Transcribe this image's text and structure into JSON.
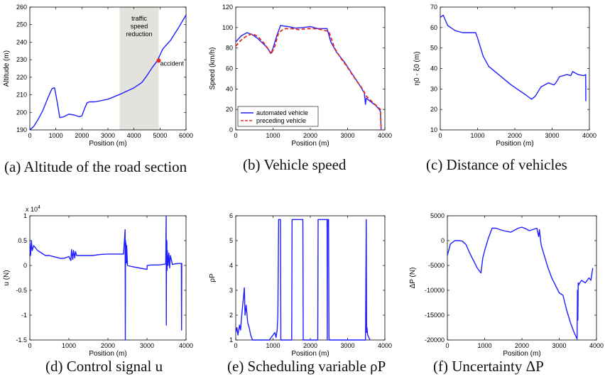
{
  "captions": {
    "a": "(a) Altitude of the road section",
    "b": "(b) Vehicle speed",
    "c": "(c) Distance of vehicles",
    "d": "(d) Control signal u",
    "e": "(e) Scheduling variable ρP",
    "f": "(f) Uncertainty ΔP"
  },
  "chart_data": [
    {
      "id": "a",
      "type": "line",
      "xlabel": "Position (m)",
      "ylabel": "Altitude (m)",
      "xlim": [
        0,
        6000
      ],
      "ylim": [
        190,
        260
      ],
      "xticks": [
        0,
        1000,
        2000,
        3000,
        4000,
        5000,
        6000
      ],
      "yticks": [
        190,
        200,
        210,
        220,
        230,
        240,
        250,
        260
      ],
      "shaded_region": {
        "x": [
          3450,
          4950
        ],
        "label": "traffic speed reduction",
        "color": "#e3e2dd"
      },
      "annotations": [
        {
          "text": "accident",
          "x": 4950,
          "y": 229.5,
          "marker_color": "#e8281f"
        }
      ],
      "series": [
        {
          "color": "#1f1fff",
          "x": [
            0,
            150,
            300,
            500,
            700,
            850,
            950,
            1050,
            1150,
            1300,
            1500,
            1700,
            1900,
            2000,
            2100,
            2200,
            2300,
            2500,
            3000,
            3500,
            4000,
            4300,
            4500,
            4700,
            4900,
            5100,
            5400,
            5700,
            6000
          ],
          "y": [
            190,
            192,
            195.5,
            201,
            208.5,
            213.5,
            214,
            206,
            197,
            197.5,
            199,
            198.5,
            197.5,
            198,
            202,
            205.5,
            206,
            206,
            207.5,
            210.5,
            214,
            217,
            221,
            225.5,
            229.5,
            236,
            241,
            248,
            255.5
          ]
        }
      ]
    },
    {
      "id": "b",
      "type": "line",
      "xlabel": "Position (m)",
      "ylabel": "Speed (km/h)",
      "xlim": [
        0,
        4000
      ],
      "ylim": [
        0,
        120
      ],
      "xticks": [
        0,
        1000,
        2000,
        3000,
        4000
      ],
      "yticks": [
        0,
        20,
        40,
        60,
        80,
        100,
        120
      ],
      "legend": "bottom-left",
      "series": [
        {
          "name": "automated vehicle",
          "color": "#1f1fff",
          "dash": "",
          "x": [
            0,
            150,
            300,
            450,
            600,
            800,
            950,
            1000,
            1100,
            1200,
            1400,
            1600,
            1800,
            2000,
            2200,
            2450,
            2550,
            2700,
            2900,
            3100,
            3300,
            3450,
            3480,
            3500,
            3600,
            3750,
            3850,
            3880,
            3900,
            3905
          ],
          "y": [
            86,
            92,
            95,
            93,
            89,
            82,
            75,
            80,
            92,
            102,
            101,
            99.5,
            100,
            101,
            99,
            99,
            86,
            76,
            67,
            56,
            45,
            36,
            25,
            31,
            28,
            24,
            20,
            18,
            0,
            0
          ]
        },
        {
          "name": "preceding vehicle",
          "color": "#e8281f",
          "dash": "5,3",
          "x": [
            0,
            150,
            300,
            450,
            600,
            800,
            950,
            1050,
            1150,
            1300,
            1500,
            1700,
            1900,
            2100,
            2300,
            2500,
            2650,
            2800,
            3000,
            3200,
            3400,
            3500,
            3700,
            3880,
            3900
          ],
          "y": [
            82,
            88,
            92,
            94,
            91,
            83,
            74,
            82,
            95,
            99,
            99,
            98,
            99,
            99,
            98,
            96,
            80,
            71,
            61,
            50,
            40,
            33,
            26,
            20,
            0
          ]
        }
      ]
    },
    {
      "id": "c",
      "type": "line",
      "xlabel": "Position (m)",
      "ylabel": "η0 - ξ0 (m)",
      "xlim": [
        0,
        4000
      ],
      "ylim": [
        10,
        70
      ],
      "xticks": [
        0,
        1000,
        2000,
        3000,
        4000
      ],
      "yticks": [
        10,
        20,
        30,
        40,
        50,
        60,
        70
      ],
      "series": [
        {
          "color": "#1f1fff",
          "x": [
            0,
            80,
            200,
            400,
            600,
            800,
            950,
            1000,
            1150,
            1300,
            1500,
            1700,
            1900,
            2100,
            2300,
            2450,
            2550,
            2700,
            2900,
            3050,
            3100,
            3200,
            3400,
            3500,
            3550,
            3700,
            3850,
            3900,
            3905
          ],
          "y": [
            65,
            66,
            61,
            58.5,
            57.5,
            57.5,
            57.5,
            55,
            46,
            41,
            38,
            35,
            32,
            29.5,
            27,
            25,
            26.5,
            31,
            33,
            32,
            33,
            36,
            37,
            36.5,
            38.5,
            37,
            36.5,
            37,
            24
          ]
        }
      ]
    },
    {
      "id": "d",
      "type": "line",
      "xlabel": "Position (m)",
      "ylabel": "u (N)",
      "multiplier": "x 10^4",
      "xlim": [
        0,
        4000
      ],
      "ylim": [
        -1.5,
        1
      ],
      "xticks": [
        0,
        1000,
        2000,
        3000,
        4000
      ],
      "yticks": [
        -1.5,
        -1,
        -0.5,
        0,
        0.5,
        1
      ],
      "series": [
        {
          "color": "#1f1fff",
          "x": [
            0,
            20,
            40,
            60,
            100,
            200,
            300,
            400,
            500,
            600,
            700,
            800,
            900,
            1000,
            1050,
            1070,
            1100,
            1120,
            1150,
            1170,
            1200,
            1400,
            1600,
            1800,
            2000,
            2200,
            2400,
            2440,
            2445,
            2450,
            2455,
            2460,
            2470,
            2480,
            2500,
            2600,
            2800,
            3000,
            3005,
            3100,
            3300,
            3480,
            3490,
            3495,
            3500,
            3505,
            3510,
            3515,
            3520,
            3540,
            3560,
            3580,
            3600,
            3650,
            3700,
            3800,
            3880,
            3885,
            3890
          ],
          "y": [
            0.45,
            0.2,
            0.5,
            0.3,
            0.4,
            0.3,
            0.25,
            0.2,
            0.2,
            0.18,
            0.16,
            0.14,
            0.15,
            0.18,
            0.1,
            0.32,
            0.12,
            0.3,
            0.15,
            0.28,
            0.2,
            0.2,
            0.2,
            0.22,
            0.23,
            0.23,
            0.23,
            0.72,
            -1.5,
            0.5,
            0.1,
            0.45,
            0.05,
            0.4,
            0,
            -0.02,
            -0.05,
            -0.08,
            0,
            0.01,
            0.01,
            0.03,
            1.0,
            -1.2,
            0.4,
            -0.1,
            0.5,
            -0.1,
            0.3,
            0,
            0.25,
            -0.05,
            0.2,
            0.02,
            0.03,
            0.04,
            0.04,
            -1.3,
            0.05
          ]
        }
      ]
    },
    {
      "id": "e",
      "type": "line",
      "xlabel": "Position (m)",
      "ylabel": "ρP",
      "xlim": [
        0,
        4000
      ],
      "ylim": [
        1,
        6
      ],
      "xticks": [
        0,
        1000,
        2000,
        3000,
        4000
      ],
      "yticks": [
        1,
        2,
        3,
        4,
        5,
        6
      ],
      "series": [
        {
          "color": "#1f1fff",
          "x": [
            0,
            30,
            60,
            100,
            130,
            160,
            200,
            230,
            250,
            280,
            320,
            360,
            400,
            450,
            900,
            1050,
            1080,
            1110,
            1130,
            1150,
            1200,
            1210,
            1500,
            1510,
            1800,
            1810,
            2200,
            2210,
            2450,
            2455,
            2460,
            2490,
            2500,
            2510,
            3480,
            3500,
            3510,
            3520,
            3540,
            3600
          ],
          "y": [
            1.3,
            1.5,
            1.2,
            1.6,
            1.4,
            2.0,
            2.6,
            3.1,
            2.0,
            2.4,
            1.7,
            1.5,
            1.2,
            1,
            1,
            1.3,
            1.1,
            1.4,
            2.0,
            5.85,
            5.85,
            1,
            1,
            5.85,
            5.85,
            1,
            1,
            5.85,
            5.85,
            1,
            5.85,
            5.85,
            1.1,
            1,
            1,
            5.85,
            1.3,
            1.5,
            1.2,
            1
          ]
        }
      ]
    },
    {
      "id": "f",
      "type": "line",
      "xlabel": "Position (m)",
      "ylabel": "ΔP (N)",
      "xlim": [
        0,
        4000
      ],
      "ylim": [
        -20000,
        5000
      ],
      "xticks": [
        0,
        1000,
        2000,
        3000,
        4000
      ],
      "yticks": [
        -20000,
        -15000,
        -10000,
        -5000,
        0,
        5000
      ],
      "series": [
        {
          "color": "#1f1fff",
          "x": [
            0,
            80,
            200,
            300,
            400,
            500,
            600,
            700,
            800,
            900,
            950,
            1000,
            1100,
            1200,
            1300,
            1500,
            1700,
            1900,
            2000,
            2100,
            2200,
            2400,
            2450,
            2470,
            2500,
            2520,
            2600,
            2700,
            2800,
            3000,
            3100,
            3200,
            3300,
            3400,
            3480,
            3490,
            3500,
            3510,
            3520,
            3550,
            3600,
            3700,
            3800,
            3850,
            3900
          ],
          "y": [
            -3000,
            -700,
            0,
            0,
            -100,
            -800,
            -2500,
            -4000,
            -5500,
            -6500,
            -3500,
            -2000,
            500,
            2500,
            2500,
            2000,
            1700,
            2500,
            2700,
            2400,
            2000,
            2500,
            800,
            2200,
            0,
            -1000,
            -3000,
            -5500,
            -7500,
            -10500,
            -11000,
            -14000,
            -16500,
            -18500,
            -19800,
            -10000,
            -16000,
            -8500,
            -9000,
            -8500,
            -8000,
            -8500,
            -7500,
            -8000,
            -5500
          ]
        }
      ]
    }
  ]
}
